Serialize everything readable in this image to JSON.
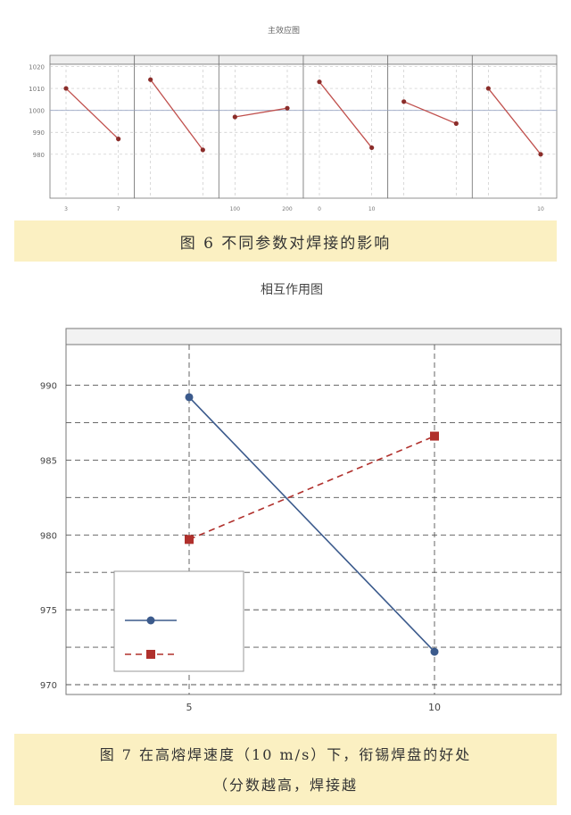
{
  "figure6": {
    "caption": "图 6   不同参数对焊接的影响",
    "chart_data": {
      "type": "line",
      "title": "主效应图",
      "subtitle": "",
      "ylabel": "",
      "ylim": [
        960,
        1021
      ],
      "yticks": [
        "1020",
        "1010",
        "1000",
        "990",
        "980"
      ],
      "panels": [
        {
          "name": "",
          "x": [
            "3",
            "7"
          ],
          "values": [
            1010,
            987
          ]
        },
        {
          "name": "",
          "x": [
            "",
            ""
          ],
          "values": [
            1014,
            982
          ]
        },
        {
          "name": "",
          "x": [
            "100",
            "200"
          ],
          "values": [
            997,
            1001
          ]
        },
        {
          "name": "",
          "x": [
            "0",
            "10"
          ],
          "values": [
            1013,
            983
          ]
        },
        {
          "name": "",
          "x": [
            "",
            ""
          ],
          "values": [
            1004,
            994
          ]
        },
        {
          "name": "",
          "x": [
            "",
            "10"
          ],
          "values": [
            1010,
            980
          ]
        }
      ],
      "reference_line": 1000,
      "grid": true
    }
  },
  "figure7": {
    "caption_line1": "图 7   在高熔焊速度（10 m/s）下，衔锡焊盘的好处",
    "caption_line2": "（分数越高，焊接越",
    "chart_data": {
      "type": "line",
      "title": "相互作用图",
      "subtitle": "",
      "panel_header": "",
      "xlabel": "",
      "ylabel": "",
      "categories": [
        "5",
        "10"
      ],
      "ylim": [
        970,
        992
      ],
      "yticks": [
        990,
        985,
        980,
        975,
        970
      ],
      "legend_title": "",
      "legend_position": "bottom-left",
      "grid": true,
      "series": [
        {
          "name": "",
          "color": "#3b5a8c",
          "marker": "circle",
          "dash": false,
          "values": [
            989.2,
            972.2
          ]
        },
        {
          "name": "",
          "color": "#b0302c",
          "marker": "square",
          "dash": true,
          "values": [
            979.7,
            986.6
          ]
        }
      ]
    }
  }
}
